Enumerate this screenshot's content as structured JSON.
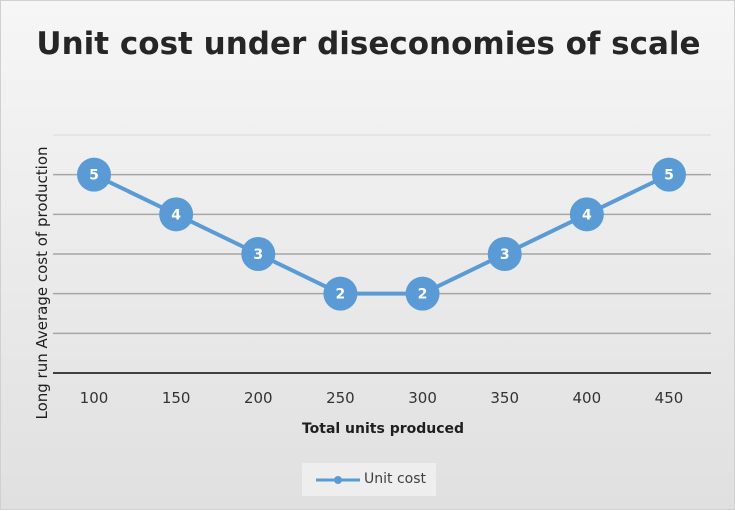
{
  "chart_data": {
    "type": "line",
    "title": "Unit cost under diseconomies of scale",
    "xlabel": "Total units produced",
    "ylabel": "Long run Average cost of production",
    "categories": [
      "100",
      "150",
      "200",
      "250",
      "300",
      "350",
      "400",
      "450"
    ],
    "series": [
      {
        "name": "Unit cost",
        "values": [
          5,
          4,
          3,
          2,
          2,
          3,
          4,
          5
        ]
      }
    ],
    "ylim": [
      0,
      6
    ],
    "grid": true,
    "legend_position": "bottom",
    "colors": {
      "line": "#5b9bd5",
      "gridline": "#a6a6a6",
      "axis": "#404040"
    }
  }
}
